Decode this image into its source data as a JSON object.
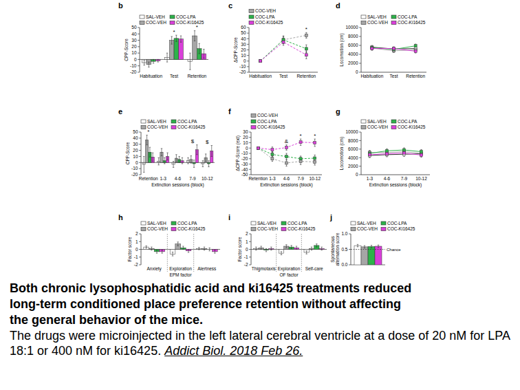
{
  "chart_data": [
    {
      "title": "b",
      "type": "bar",
      "y_label": "CPP-Score",
      "categories": [
        "Habituation",
        "Test",
        "Retention"
      ],
      "series": [
        {
          "name": "SAL-VEH",
          "color": "#ffffff",
          "values": [
            -5,
            3,
            -3
          ],
          "errors": [
            4,
            7,
            13
          ]
        },
        {
          "name": "COC-VEH",
          "color": "#a6a6a6",
          "values": [
            -8,
            30,
            37
          ],
          "errors": [
            4,
            6,
            8
          ]
        },
        {
          "name": "COC-LPA",
          "color": "#2eb24a",
          "values": [
            -3,
            33,
            17
          ],
          "errors": [
            3,
            5,
            8
          ]
        },
        {
          "name": "COC-Ki16425",
          "color": "#d93fd9",
          "values": [
            -2,
            32,
            9
          ],
          "errors": [
            2,
            5,
            7
          ]
        }
      ],
      "ylim": [
        -20,
        50
      ],
      "yticks": [
        -20,
        -10,
        0,
        10,
        20,
        30,
        40,
        50
      ],
      "legend": "top",
      "annotations": [
        {
          "text": "*",
          "category": "Test"
        },
        {
          "text": "*",
          "category": "Retention"
        }
      ]
    },
    {
      "title": "c",
      "type": "line",
      "y_label": "ΔCPP-Score",
      "categories": [
        "Habituation",
        "Test",
        "Retention"
      ],
      "series": [
        {
          "name": "COC-VEH",
          "color": "#a6a6a6",
          "values": [
            0,
            38,
            46
          ],
          "errors": [
            0,
            7,
            5
          ]
        },
        {
          "name": "COC-LPA",
          "color": "#2eb24a",
          "values": [
            0,
            38,
            22
          ],
          "errors": [
            0,
            6,
            7
          ]
        },
        {
          "name": "COC-Ki16425",
          "color": "#d93fd9",
          "values": [
            0,
            34,
            11
          ],
          "errors": [
            0,
            6,
            7
          ]
        }
      ],
      "ylim": [
        -20,
        60
      ],
      "yticks": [
        -20,
        -10,
        0,
        10,
        20,
        30,
        40,
        50,
        60
      ],
      "legend": "top",
      "marker": "square",
      "line_style": "dashed",
      "annotations": [
        {
          "text": "*",
          "category": "Retention"
        }
      ]
    },
    {
      "title": "d",
      "type": "line",
      "y_label": "Locomotion (cm)",
      "categories": [
        "Habituation",
        "Test",
        "Retention"
      ],
      "series": [
        {
          "name": "SAL-VEH",
          "color": "#ffffff",
          "values": [
            5600,
            5200,
            5300
          ],
          "errors": [
            400,
            400,
            400
          ]
        },
        {
          "name": "COC-VEH",
          "color": "#a6a6a6",
          "values": [
            5400,
            4800,
            5000
          ],
          "errors": [
            400,
            400,
            400
          ]
        },
        {
          "name": "COC-LPA",
          "color": "#2eb24a",
          "values": [
            5500,
            5100,
            5900
          ],
          "errors": [
            400,
            400,
            400
          ]
        },
        {
          "name": "COC-Ki16425",
          "color": "#d93fd9",
          "values": [
            5300,
            5300,
            4700
          ],
          "errors": [
            400,
            400,
            400
          ]
        }
      ],
      "ylim": [
        0,
        10000
      ],
      "yticks": [
        0,
        2000,
        4000,
        6000,
        8000,
        10000
      ],
      "legend": "top",
      "marker": "square",
      "line_style": "solid"
    },
    {
      "title": "e",
      "type": "bar",
      "y_label": "CPP-Score",
      "x_label": "Extinction sessions (block)",
      "categories": [
        "Retention",
        "1-3",
        "4-6",
        "7-9",
        "10-12"
      ],
      "series": [
        {
          "name": "SAL-VEH",
          "color": "#ffffff",
          "values": [
            -3,
            2,
            -3,
            3,
            -2
          ],
          "errors": [
            13,
            6,
            5,
            5,
            5
          ]
        },
        {
          "name": "COC-VEH",
          "color": "#a6a6a6",
          "values": [
            37,
            17,
            7,
            5,
            8
          ],
          "errors": [
            8,
            6,
            6,
            6,
            6
          ]
        },
        {
          "name": "COC-LPA",
          "color": "#2eb24a",
          "values": [
            17,
            3,
            5,
            -2,
            -2
          ],
          "errors": [
            8,
            5,
            5,
            6,
            5
          ]
        },
        {
          "name": "COC-Ki16425",
          "color": "#d93fd9",
          "values": [
            9,
            10,
            3,
            21,
            19
          ],
          "errors": [
            7,
            6,
            5,
            8,
            9
          ]
        }
      ],
      "ylim": [
        -20,
        50
      ],
      "yticks": [
        -20,
        -10,
        0,
        10,
        20,
        30,
        40,
        50
      ],
      "legend": "top",
      "annotations": [
        {
          "text": "*",
          "category": "Retention"
        },
        {
          "text": "$",
          "category": "7-9"
        },
        {
          "text": "$",
          "category": "10-12"
        }
      ]
    },
    {
      "title": "f",
      "type": "line",
      "y_label": "ΔCPP-Score (ext)",
      "x_label": "Extinction sessions (block)",
      "categories": [
        "Retention",
        "1-3",
        "4-6",
        "7-9",
        "10-12"
      ],
      "series": [
        {
          "name": "COC-VEH",
          "color": "#a6a6a6",
          "values": [
            0,
            -20,
            -28,
            -25,
            -26
          ],
          "errors": [
            0,
            5,
            6,
            6,
            6
          ]
        },
        {
          "name": "COC-LPA",
          "color": "#2eb24a",
          "values": [
            0,
            -12,
            -16,
            -20,
            -19
          ],
          "errors": [
            0,
            5,
            6,
            5,
            6
          ]
        },
        {
          "name": "COC-Ki16425",
          "color": "#d93fd9",
          "values": [
            0,
            -3,
            1,
            11,
            10
          ],
          "errors": [
            0,
            5,
            5,
            6,
            7
          ]
        }
      ],
      "ylim": [
        -50,
        30
      ],
      "yticks": [
        -50,
        -40,
        -30,
        -20,
        -10,
        0,
        10,
        20,
        30
      ],
      "legend": "top",
      "marker": "square",
      "line_style": "dashed",
      "annotations": [
        {
          "text": "&",
          "category": "4-6"
        },
        {
          "text": "*",
          "category": "7-9"
        },
        {
          "text": "*",
          "category": "10-12"
        }
      ]
    },
    {
      "title": "g",
      "type": "line",
      "y_label": "Locomotion (cm)",
      "x_label": "Extinction sessions (block)",
      "categories": [
        "1-3",
        "4-6",
        "7-9",
        "10-12"
      ],
      "series": [
        {
          "name": "SAL-VEH",
          "color": "#ffffff",
          "values": [
            4500,
            4700,
            4800,
            4900
          ],
          "errors": [
            500,
            500,
            500,
            500
          ]
        },
        {
          "name": "COC-VEH",
          "color": "#a6a6a6",
          "values": [
            5200,
            5200,
            5400,
            5000
          ],
          "errors": [
            500,
            500,
            500,
            500
          ]
        },
        {
          "name": "COC-LPA",
          "color": "#2eb24a",
          "values": [
            5000,
            5600,
            5800,
            5400
          ],
          "errors": [
            500,
            500,
            500,
            500
          ]
        },
        {
          "name": "COC-Ki16425",
          "color": "#d93fd9",
          "values": [
            4700,
            4900,
            5100,
            4600
          ],
          "errors": [
            500,
            500,
            500,
            500
          ]
        }
      ],
      "ylim": [
        0,
        10000
      ],
      "yticks": [
        0,
        2000,
        4000,
        6000,
        8000,
        10000
      ],
      "legend": "top",
      "marker": "square",
      "line_style": "solid"
    },
    {
      "title": "h",
      "type": "bar",
      "y_label": "Factor score",
      "x_label": "EPM factor",
      "categories": [
        "Anxiety",
        "Exploration",
        "Alertness"
      ],
      "series": [
        {
          "name": "SAL-VEH",
          "color": "#ffffff",
          "values": [
            0.3,
            -0.6,
            0.1
          ],
          "errors": [
            0.15,
            0.25,
            0.15
          ]
        },
        {
          "name": "COC-VEH",
          "color": "#a6a6a6",
          "values": [
            0.1,
            0.7,
            0.1
          ],
          "errors": [
            0.2,
            0.25,
            0.2
          ]
        },
        {
          "name": "COC-LPA",
          "color": "#2eb24a",
          "values": [
            -0.3,
            0.2,
            0.0
          ],
          "errors": [
            0.2,
            0.2,
            0.2
          ]
        },
        {
          "name": "COC-Ki16425",
          "color": "#d93fd9",
          "values": [
            -0.3,
            -0.2,
            -0.3
          ],
          "errors": [
            0.2,
            0.2,
            0.2
          ]
        }
      ],
      "ylim": [
        -2,
        2
      ],
      "yticks": [
        -2,
        -1,
        0,
        1,
        2
      ],
      "legend": "top"
    },
    {
      "title": "i",
      "type": "bar",
      "y_label": "Factor score",
      "x_label": "OF factor",
      "categories": [
        "Thigmotaxis",
        "Exploration",
        "Self-care"
      ],
      "series": [
        {
          "name": "SAL-VEH",
          "color": "#ffffff",
          "values": [
            0.1,
            -0.5,
            -0.4
          ],
          "errors": [
            0.2,
            0.2,
            0.2
          ]
        },
        {
          "name": "COC-VEH",
          "color": "#a6a6a6",
          "values": [
            0.2,
            0.4,
            0.1
          ],
          "errors": [
            0.2,
            0.2,
            0.2
          ]
        },
        {
          "name": "COC-LPA",
          "color": "#2eb24a",
          "values": [
            -0.1,
            0.3,
            0.5
          ],
          "errors": [
            0.2,
            0.2,
            0.2
          ]
        },
        {
          "name": "COC-Ki16425",
          "color": "#d93fd9",
          "values": [
            0.1,
            0.2,
            0.1
          ],
          "errors": [
            0.2,
            0.2,
            0.2
          ]
        }
      ],
      "ylim": [
        -2,
        2
      ],
      "yticks": [
        -2,
        -1,
        0,
        1,
        2
      ],
      "legend": "top"
    },
    {
      "title": "j",
      "type": "bar",
      "y_label": "Spontaneous alternation score",
      "categories": [
        null
      ],
      "series": [
        {
          "name": "SAL-VEH",
          "color": "#ffffff",
          "values": [
            0.62
          ],
          "errors": [
            0.04
          ]
        },
        {
          "name": "COC-VEH",
          "color": "#a6a6a6",
          "values": [
            0.58
          ],
          "errors": [
            0.04
          ]
        },
        {
          "name": "COC-LPA",
          "color": "#2eb24a",
          "values": [
            0.59
          ],
          "errors": [
            0.04
          ]
        },
        {
          "name": "COC-Ki16425",
          "color": "#d93fd9",
          "values": [
            0.6
          ],
          "errors": [
            0.04
          ]
        }
      ],
      "ylim": [
        0,
        1
      ],
      "yticks": [
        {
          "value": 0,
          "label": "0.0"
        },
        {
          "value": 0.5,
          "label": "0.5"
        },
        {
          "value": 1,
          "label": "1.0"
        }
      ],
      "legend": "top",
      "annotations": [
        {
          "text": "Chance",
          "y": 0.5
        }
      ]
    }
  ],
  "caption": {
    "title": "Both chronic lysophosphatidic acid and ki16425 treatments reduced long-term conditioned place preference retention without affecting the general behavior of the mice.",
    "text": "The drugs were microinjected in the left lateral cerebral ventricle at a dose of 20 nM for LPA 18:1 or 400 nM for ki16425.",
    "citation": "Addict Biol. 2018 Feb 26."
  }
}
